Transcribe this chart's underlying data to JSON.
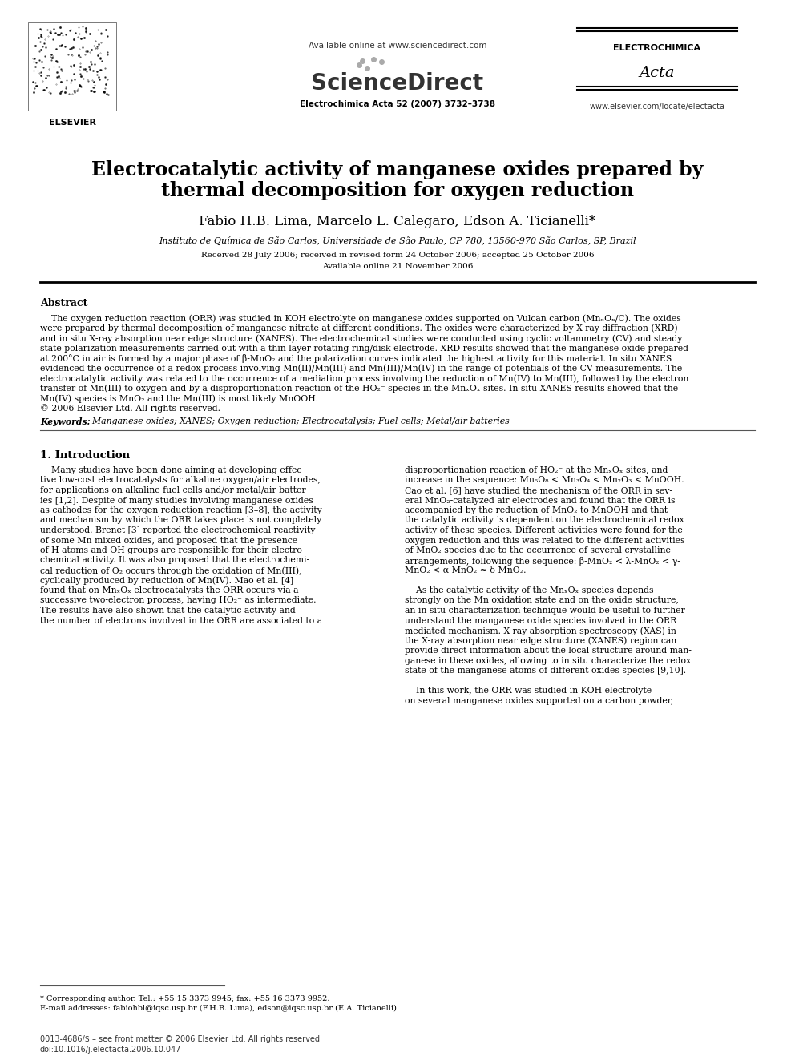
{
  "bg_color": "#ffffff",
  "header_available_text": "Available online at www.sciencedirect.com",
  "sciencedirect_text": "ScienceDirect",
  "journal_ref": "Electrochimica Acta 52 (2007) 3732–3738",
  "journal_name": "ELECTROCHIMICA",
  "journal_name2": "Acta",
  "journal_url": "www.elsevier.com/locate/electacta",
  "publisher": "ELSEVIER",
  "title_line1": "Electrocatalytic activity of manganese oxides prepared by",
  "title_line2": "thermal decomposition for oxygen reduction",
  "authors": "Fabio H.B. Lima, Marcelo L. Calegaro, Edson A. Ticianelli*",
  "affiliation": "Instituto de Química de São Carlos, Universidade de São Paulo, CP 780, 13560-970 São Carlos, SP, Brazil",
  "received": "Received 28 July 2006; received in revised form 24 October 2006; accepted 25 October 2006",
  "available": "Available online 21 November 2006",
  "abstract_title": "Abstract",
  "section1_title": "1. Introduction",
  "footnote_star": "* Corresponding author. Tel.: +55 15 3373 9945; fax: +55 16 3373 9952.",
  "footnote_email": "E-mail addresses: fabiohbl@iqsc.usp.br (F.H.B. Lima), edson@iqsc.usp.br (E.A. Ticianelli).",
  "footnote_bottom1": "0013-4686/$ – see front matter © 2006 Elsevier Ltd. All rights reserved.",
  "footnote_bottom2": "doi:10.1016/j.electacta.2006.10.047",
  "abstract_lines": [
    "    The oxygen reduction reaction (ORR) was studied in KOH electrolyte on manganese oxides supported on Vulcan carbon (MnₓOₓ/C). The oxides",
    "were prepared by thermal decomposition of manganese nitrate at different conditions. The oxides were characterized by X-ray diffraction (XRD)",
    "and in situ X-ray absorption near edge structure (XANES). The electrochemical studies were conducted using cyclic voltammetry (CV) and steady",
    "state polarization measurements carried out with a thin layer rotating ring/disk electrode. XRD results showed that the manganese oxide prepared",
    "at 200°C in air is formed by a major phase of β-MnO₂ and the polarization curves indicated the highest activity for this material. In situ XANES",
    "evidenced the occurrence of a redox process involving Mn(II)/Mn(III) and Mn(III)/Mn(IV) in the range of potentials of the CV measurements. The",
    "electrocatalytic activity was related to the occurrence of a mediation process involving the reduction of Mn(IV) to Mn(III), followed by the electron",
    "transfer of Mn(III) to oxygen and by a disproportionation reaction of the HO₂⁻ species in the MnₓOₓ sites. In situ XANES results showed that the",
    "Mn(IV) species is MnO₂ and the Mn(III) is most likely MnOOH.",
    "© 2006 Elsevier Ltd. All rights reserved."
  ],
  "keywords_label": "Keywords:",
  "keywords_text": "  Manganese oxides; XANES; Oxygen reduction; Electrocatalysis; Fuel cells; Metal/air batteries",
  "col1_lines": [
    "    Many studies have been done aiming at developing effec-",
    "tive low-cost electrocatalysts for alkaline oxygen/air electrodes,",
    "for applications on alkaline fuel cells and/or metal/air batter-",
    "ies [1,2]. Despite of many studies involving manganese oxides",
    "as cathodes for the oxygen reduction reaction [3–8], the activity",
    "and mechanism by which the ORR takes place is not completely",
    "understood. Brenet [3] reported the electrochemical reactivity",
    "of some Mn mixed oxides, and proposed that the presence",
    "of H atoms and OH groups are responsible for their electro-",
    "chemical activity. It was also proposed that the electrochemi-",
    "cal reduction of O₂ occurs through the oxidation of Mn(III),",
    "cyclically produced by reduction of Mn(IV). Mao et al. [4]",
    "found that on MnₓOₓ electrocatalysts the ORR occurs via a",
    "successive two-electron process, having HO₂⁻ as intermediate.",
    "The results have also shown that the catalytic activity and",
    "the number of electrons involved in the ORR are associated to a"
  ],
  "col2_lines": [
    "disproportionation reaction of HO₂⁻ at the MnₓOₓ sites, and",
    "increase in the sequence: Mn₅O₈ < Mn₃O₄ < Mn₂O₃ < MnOOH.",
    "Cao et al. [6] have studied the mechanism of the ORR in sev-",
    "eral MnO₂-catalyzed air electrodes and found that the ORR is",
    "accompanied by the reduction of MnO₂ to MnOOH and that",
    "the catalytic activity is dependent on the electrochemical redox",
    "activity of these species. Different activities were found for the",
    "oxygen reduction and this was related to the different activities",
    "of MnO₂ species due to the occurrence of several crystalline",
    "arrangements, following the sequence: β-MnO₂ < λ-MnO₂ < γ-",
    "MnO₂ < α-MnO₂ ≈ δ-MnO₂.",
    "",
    "    As the catalytic activity of the MnₓOₓ species depends",
    "strongly on the Mn oxidation state and on the oxide structure,",
    "an in situ characterization technique would be useful to further",
    "understand the manganese oxide species involved in the ORR",
    "mediated mechanism. X-ray absorption spectroscopy (XAS) in",
    "the X-ray absorption near edge structure (XANES) region can",
    "provide direct information about the local structure around man-",
    "ganese in these oxides, allowing to in situ characterize the redox",
    "state of the manganese atoms of different oxides species [9,10].",
    "",
    "    In this work, the ORR was studied in KOH electrolyte",
    "on several manganese oxides supported on a carbon powder,"
  ]
}
